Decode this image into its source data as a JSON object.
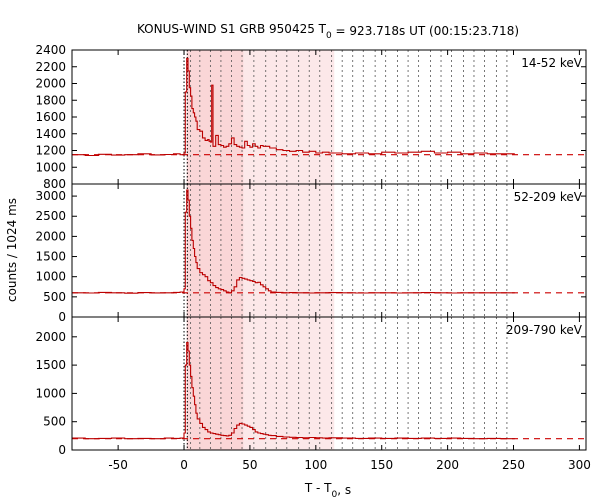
{
  "chart_data": {
    "type": "line",
    "title": {
      "prefix": "KONUS-WIND S1 GRB 950425 T",
      "sub": "0",
      "suffix": " = 923.718s UT (00:15:23.718)"
    },
    "xlabel": {
      "main": "T - T",
      "sub": "0",
      "suffix": ", s"
    },
    "ylabel": "counts / 1024 ms",
    "xlim": [
      -85,
      305
    ],
    "xticks": [
      -50,
      0,
      50,
      100,
      150,
      200,
      250,
      300
    ],
    "highlight_intervals": [
      {
        "x0": 2,
        "x1": 45,
        "opacity": 0.22
      },
      {
        "x0": 45,
        "x1": 114,
        "opacity": 0.12
      }
    ],
    "trigger_marks": [
      0,
      2.5
    ],
    "spectrum_boundaries": [
      5,
      12,
      20,
      28,
      36,
      44,
      53,
      62,
      70,
      78,
      87,
      95,
      103,
      112,
      120,
      128,
      136,
      145,
      153,
      162,
      170,
      178,
      187,
      195,
      203,
      212,
      220,
      228,
      237,
      245
    ],
    "panels": [
      {
        "label": "14-52 keV",
        "ylim": [
          800,
          2400
        ],
        "yticks": [
          800,
          1000,
          1200,
          1400,
          1600,
          1800,
          2000,
          2200,
          2400
        ],
        "background": 1150,
        "series": [
          {
            "name": "14-52 keV",
            "x": [
              -85,
              -75,
              -65,
              -55,
              -45,
              -35,
              -25,
              -15,
              -8,
              -3,
              0,
              1,
              2,
              3,
              4,
              5,
              6,
              7,
              8,
              9,
              10,
              12,
              14,
              16,
              18,
              19,
              20,
              21,
              22,
              24,
              26,
              28,
              30,
              32,
              34,
              36,
              38,
              40,
              42,
              44,
              46,
              48,
              50,
              52,
              54,
              56,
              58,
              60,
              65,
              70,
              75,
              80,
              85,
              90,
              95,
              100,
              105,
              110,
              120,
              130,
              140,
              150,
              160,
              170,
              180,
              190,
              200,
              210,
              220,
              230,
              240,
              250
            ],
            "y": [
              1150,
              1140,
              1155,
              1145,
              1150,
              1160,
              1148,
              1152,
              1160,
              1150,
              1170,
              1900,
              2300,
              2150,
              1950,
              1850,
              1700,
              1650,
              1600,
              1550,
              1450,
              1430,
              1350,
              1320,
              1330,
              1310,
              1300,
              1980,
              1250,
              1380,
              1270,
              1260,
              1240,
              1250,
              1280,
              1350,
              1270,
              1250,
              1240,
              1230,
              1310,
              1260,
              1240,
              1280,
              1250,
              1230,
              1260,
              1250,
              1230,
              1210,
              1200,
              1190,
              1200,
              1180,
              1190,
              1170,
              1180,
              1170,
              1160,
              1170,
              1160,
              1180,
              1170,
              1180,
              1190,
              1170,
              1180,
              1160,
              1170,
              1160,
              1160,
              1160
            ]
          }
        ]
      },
      {
        "label": "52-209 keV",
        "ylim": [
          0,
          3300
        ],
        "yticks": [
          0,
          500,
          1000,
          1500,
          2000,
          2500,
          3000
        ],
        "background": 600,
        "series": [
          {
            "name": "52-209 keV",
            "x": [
              -85,
              -75,
              -65,
              -55,
              -45,
              -35,
              -25,
              -15,
              -8,
              -3,
              0,
              1,
              2,
              3,
              4,
              5,
              6,
              7,
              8,
              9,
              10,
              12,
              14,
              16,
              18,
              20,
              22,
              24,
              26,
              28,
              30,
              32,
              34,
              36,
              38,
              40,
              42,
              44,
              46,
              48,
              50,
              52,
              54,
              56,
              58,
              60,
              62,
              64,
              66,
              70,
              75,
              80,
              85,
              90,
              95,
              100,
              105,
              110,
              120,
              130,
              140,
              150,
              160,
              170,
              180,
              190,
              200,
              210,
              220,
              230,
              240,
              250
            ],
            "y": [
              600,
              595,
              610,
              600,
              590,
              605,
              598,
              600,
              610,
              620,
              700,
              2600,
              3150,
              2900,
              2500,
              2200,
              1900,
              1700,
              1500,
              1350,
              1200,
              1100,
              1050,
              1000,
              900,
              850,
              780,
              730,
              700,
              680,
              650,
              620,
              600,
              650,
              750,
              920,
              980,
              960,
              940,
              920,
              900,
              880,
              850,
              860,
              800,
              750,
              700,
              650,
              620,
              610,
              600,
              605,
              600,
              600,
              595,
              600,
              600,
              605,
              600,
              595,
              600,
              600,
              595,
              600,
              605,
              600,
              595,
              600,
              600,
              600,
              600,
              600
            ]
          }
        ]
      },
      {
        "label": "209-790 keV",
        "ylim": [
          0,
          2350
        ],
        "yticks": [
          0,
          500,
          1000,
          1500,
          2000
        ],
        "background": 200,
        "series": [
          {
            "name": "209-790 keV",
            "x": [
              -85,
              -75,
              -65,
              -55,
              -45,
              -35,
              -25,
              -15,
              -8,
              -3,
              0,
              1,
              2,
              3,
              4,
              5,
              6,
              7,
              8,
              9,
              10,
              12,
              14,
              16,
              18,
              20,
              22,
              24,
              26,
              28,
              30,
              32,
              34,
              36,
              38,
              40,
              42,
              44,
              46,
              48,
              50,
              52,
              54,
              56,
              58,
              60,
              62,
              64,
              66,
              70,
              75,
              80,
              85,
              90,
              95,
              100,
              105,
              110,
              120,
              130,
              140,
              150,
              160,
              170,
              180,
              190,
              200,
              210,
              220,
              230,
              240,
              250
            ],
            "y": [
              210,
              200,
              205,
              210,
              200,
              205,
              200,
              210,
              205,
              210,
              300,
              1500,
              1900,
              1750,
              1500,
              1300,
              1100,
              950,
              800,
              650,
              550,
              470,
              400,
              360,
              320,
              300,
              290,
              280,
              270,
              260,
              255,
              250,
              260,
              300,
              380,
              440,
              470,
              460,
              440,
              420,
              400,
              360,
              320,
              300,
              290,
              280,
              270,
              260,
              255,
              240,
              230,
              225,
              220,
              215,
              220,
              215,
              210,
              215,
              210,
              205,
              210,
              205,
              210,
              205,
              210,
              205,
              210,
              205,
              200,
              205,
              200,
              200
            ]
          }
        ]
      }
    ]
  }
}
